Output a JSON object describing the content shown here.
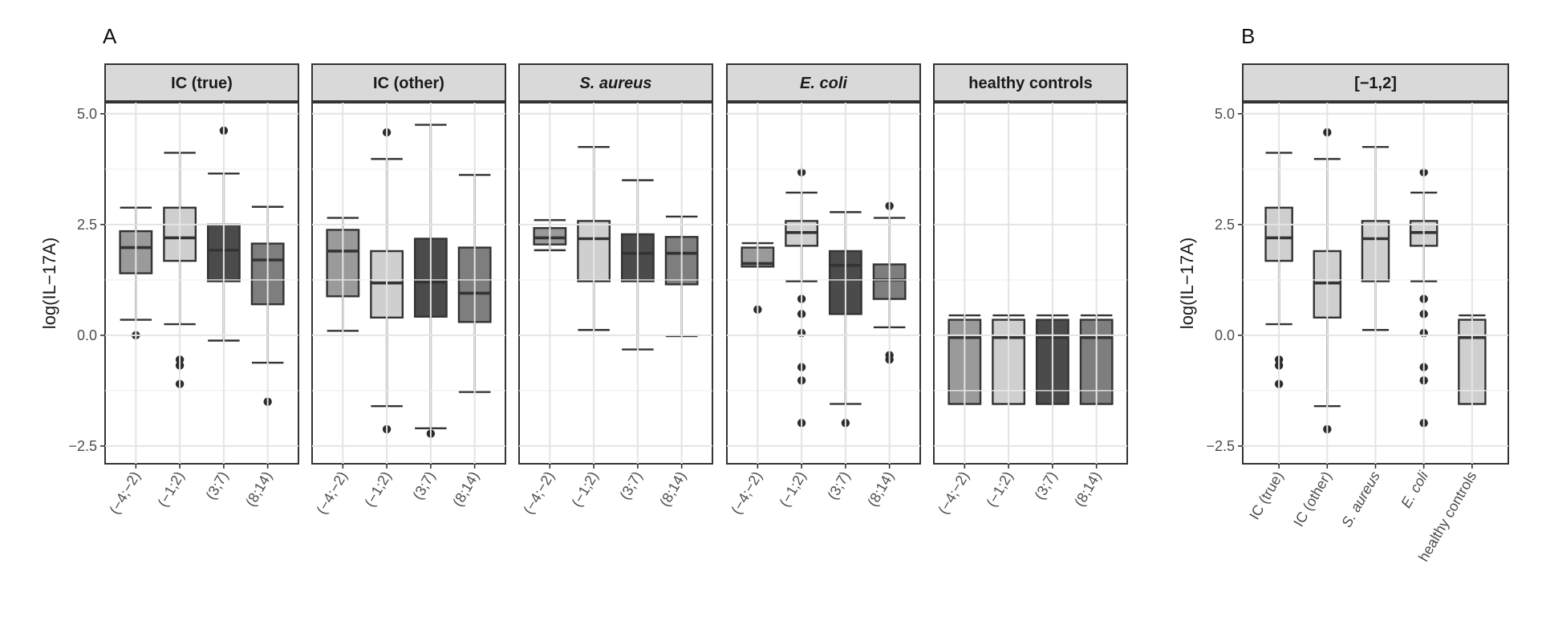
{
  "chart_data": [
    {
      "type": "boxplot",
      "panel_label": "A",
      "ylabel": "log(IL−17A)",
      "ylim": [
        -2.9,
        5.25
      ],
      "yticks": [
        5.0,
        2.5,
        0.0,
        -2.5
      ],
      "ytick_labels": [
        "5.0",
        "2.5",
        "0.0",
        "−2.5"
      ],
      "grid": true,
      "categories": [
        "(−4;−2)",
        "(−1;2)",
        "(3;7)",
        "(8;14)"
      ],
      "facets": [
        {
          "title": "IC (true)",
          "italic": false,
          "boxes": [
            {
              "category": "(−4;−2)",
              "whisker_low": 0.35,
              "q1": 1.4,
              "median": 1.98,
              "q3": 2.35,
              "whisker_high": 2.88,
              "outliers": [
                0.0
              ],
              "fill": "#9a9a9a"
            },
            {
              "category": "(−1;2)",
              "whisker_low": 0.25,
              "q1": 1.68,
              "median": 2.2,
              "q3": 2.88,
              "whisker_high": 4.12,
              "outliers": [
                -0.55,
                -0.68,
                -1.1
              ],
              "fill": "#cfcfcf"
            },
            {
              "category": "(3;7)",
              "whisker_low": -0.12,
              "q1": 1.22,
              "median": 1.92,
              "q3": 2.5,
              "whisker_high": 3.65,
              "outliers": [
                4.62
              ],
              "fill": "#4b4b4b"
            },
            {
              "category": "(8;14)",
              "whisker_low": -0.62,
              "q1": 0.7,
              "median": 1.7,
              "q3": 2.07,
              "whisker_high": 2.9,
              "outliers": [
                -1.5
              ],
              "fill": "#7e7e7e"
            }
          ]
        },
        {
          "title": "IC (other)",
          "italic": false,
          "boxes": [
            {
              "category": "(−4;−2)",
              "whisker_low": 0.1,
              "q1": 0.88,
              "median": 1.9,
              "q3": 2.38,
              "whisker_high": 2.65,
              "outliers": [],
              "fill": "#9a9a9a"
            },
            {
              "category": "(−1;2)",
              "whisker_low": -1.6,
              "q1": 0.4,
              "median": 1.18,
              "q3": 1.9,
              "whisker_high": 3.98,
              "outliers": [
                4.58,
                -2.12
              ],
              "fill": "#cfcfcf"
            },
            {
              "category": "(3;7)",
              "whisker_low": -2.1,
              "q1": 0.42,
              "median": 1.2,
              "q3": 2.18,
              "whisker_high": 4.75,
              "outliers": [
                -2.22
              ],
              "fill": "#4b4b4b"
            },
            {
              "category": "(8;14)",
              "whisker_low": -1.28,
              "q1": 0.3,
              "median": 0.95,
              "q3": 1.98,
              "whisker_high": 3.62,
              "outliers": [],
              "fill": "#7e7e7e"
            }
          ]
        },
        {
          "title": "S. aureus",
          "italic": true,
          "boxes": [
            {
              "category": "(−4;−2)",
              "whisker_low": 1.92,
              "q1": 2.05,
              "median": 2.2,
              "q3": 2.42,
              "whisker_high": 2.6,
              "outliers": [],
              "fill": "#9a9a9a"
            },
            {
              "category": "(−1;2)",
              "whisker_low": 0.12,
              "q1": 1.22,
              "median": 2.18,
              "q3": 2.58,
              "whisker_high": 4.25,
              "outliers": [],
              "fill": "#cfcfcf"
            },
            {
              "category": "(3;7)",
              "whisker_low": -0.32,
              "q1": 1.22,
              "median": 1.85,
              "q3": 2.28,
              "whisker_high": 3.5,
              "outliers": [],
              "fill": "#4b4b4b"
            },
            {
              "category": "(8;14)",
              "whisker_low": -0.02,
              "q1": 1.15,
              "median": 1.85,
              "q3": 2.22,
              "whisker_high": 2.68,
              "outliers": [],
              "fill": "#7e7e7e"
            }
          ]
        },
        {
          "title": "E. coli",
          "italic": true,
          "boxes": [
            {
              "category": "(−4;−2)",
              "whisker_low": 1.55,
              "q1": 1.55,
              "median": 1.62,
              "q3": 1.98,
              "whisker_high": 2.08,
              "outliers": [
                0.58
              ],
              "fill": "#9a9a9a"
            },
            {
              "category": "(−1;2)",
              "whisker_low": 1.22,
              "q1": 2.02,
              "median": 2.32,
              "q3": 2.58,
              "whisker_high": 3.22,
              "outliers": [
                3.68,
                0.82,
                0.48,
                0.05,
                -0.72,
                -1.02,
                -1.98
              ],
              "fill": "#cfcfcf"
            },
            {
              "category": "(3;7)",
              "whisker_low": -1.55,
              "q1": 0.48,
              "median": 1.58,
              "q3": 1.9,
              "whisker_high": 2.78,
              "outliers": [
                -1.98
              ],
              "fill": "#4b4b4b"
            },
            {
              "category": "(8;14)",
              "whisker_low": 0.18,
              "q1": 0.82,
              "median": 1.25,
              "q3": 1.6,
              "whisker_high": 2.65,
              "outliers": [
                2.92,
                -0.45,
                -0.55
              ],
              "fill": "#7e7e7e"
            }
          ]
        },
        {
          "title": "healthy controls",
          "italic": false,
          "boxes": [
            {
              "category": "(−4;−2)",
              "whisker_low": -1.55,
              "q1": -1.55,
              "median": -0.05,
              "q3": 0.35,
              "whisker_high": 0.45,
              "outliers": [],
              "fill": "#9a9a9a"
            },
            {
              "category": "(−1;2)",
              "whisker_low": -1.55,
              "q1": -1.55,
              "median": -0.05,
              "q3": 0.35,
              "whisker_high": 0.45,
              "outliers": [],
              "fill": "#cfcfcf"
            },
            {
              "category": "(3;7)",
              "whisker_low": -1.55,
              "q1": -1.55,
              "median": -0.05,
              "q3": 0.35,
              "whisker_high": 0.45,
              "outliers": [],
              "fill": "#4b4b4b"
            },
            {
              "category": "(8;14)",
              "whisker_low": -1.55,
              "q1": -1.55,
              "median": -0.05,
              "q3": 0.35,
              "whisker_high": 0.45,
              "outliers": [],
              "fill": "#7e7e7e"
            }
          ]
        }
      ]
    },
    {
      "type": "boxplot",
      "panel_label": "B",
      "ylabel": "log(IL−17A)",
      "ylim": [
        -2.9,
        5.25
      ],
      "yticks": [
        5.0,
        2.5,
        0.0,
        -2.5
      ],
      "ytick_labels": [
        "5.0",
        "2.5",
        "0.0",
        "−2.5"
      ],
      "grid": true,
      "facet_title": "[−1,2]",
      "categories": [
        {
          "label": "IC (true)",
          "italic": false
        },
        {
          "label": "IC (other)",
          "italic": false
        },
        {
          "label": "S. aureus",
          "italic": true
        },
        {
          "label": "E. coli",
          "italic": true
        },
        {
          "label": "healthy controls",
          "italic": false
        }
      ],
      "boxes": [
        {
          "category": "IC (true)",
          "whisker_low": 0.25,
          "q1": 1.68,
          "median": 2.2,
          "q3": 2.88,
          "whisker_high": 4.12,
          "outliers": [
            -0.55,
            -0.68,
            -1.1
          ],
          "fill": "#cfcfcf"
        },
        {
          "category": "IC (other)",
          "whisker_low": -1.6,
          "q1": 0.4,
          "median": 1.18,
          "q3": 1.9,
          "whisker_high": 3.98,
          "outliers": [
            4.58,
            -2.12
          ],
          "fill": "#cfcfcf"
        },
        {
          "category": "S. aureus",
          "whisker_low": 0.12,
          "q1": 1.22,
          "median": 2.18,
          "q3": 2.58,
          "whisker_high": 4.25,
          "outliers": [],
          "fill": "#cfcfcf"
        },
        {
          "category": "E. coli",
          "whisker_low": 1.22,
          "q1": 2.02,
          "median": 2.32,
          "q3": 2.58,
          "whisker_high": 3.22,
          "outliers": [
            3.68,
            0.82,
            0.48,
            0.05,
            -0.72,
            -1.02,
            -1.98
          ],
          "fill": "#cfcfcf"
        },
        {
          "category": "healthy controls",
          "whisker_low": -1.55,
          "q1": -1.55,
          "median": -0.05,
          "q3": 0.35,
          "whisker_high": 0.45,
          "outliers": [],
          "fill": "#cfcfcf"
        }
      ]
    }
  ]
}
